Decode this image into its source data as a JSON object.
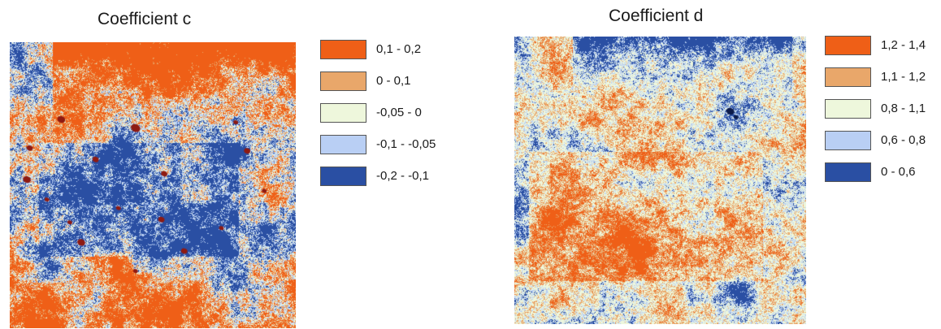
{
  "panels": [
    {
      "title": "Coefficient c",
      "legend": [
        {
          "label": "0,1 - 0,2",
          "color": "#ef5f17"
        },
        {
          "label": "0 - 0,1",
          "color": "#e9a76a"
        },
        {
          "label": "-0,05 - 0",
          "color": "#eef7dc"
        },
        {
          "label": "-0,1 - -0,05",
          "color": "#b9cff4"
        },
        {
          "label": "-0,2 - -0,1",
          "color": "#2a4fa3"
        }
      ],
      "blob_color": "#8e1a12"
    },
    {
      "title": "Coefficient d",
      "legend": [
        {
          "label": "1,2 - 1,4",
          "color": "#ef5f17"
        },
        {
          "label": "1,1 - 1,2",
          "color": "#e9a76a"
        },
        {
          "label": "0,8 - 1,1",
          "color": "#eef7dc"
        },
        {
          "label": "0,6 - 0,8",
          "color": "#b9cff4"
        },
        {
          "label": "0 - 0,6",
          "color": "#2a4fa3"
        }
      ],
      "blob_color": "#0d1b4a"
    }
  ]
}
